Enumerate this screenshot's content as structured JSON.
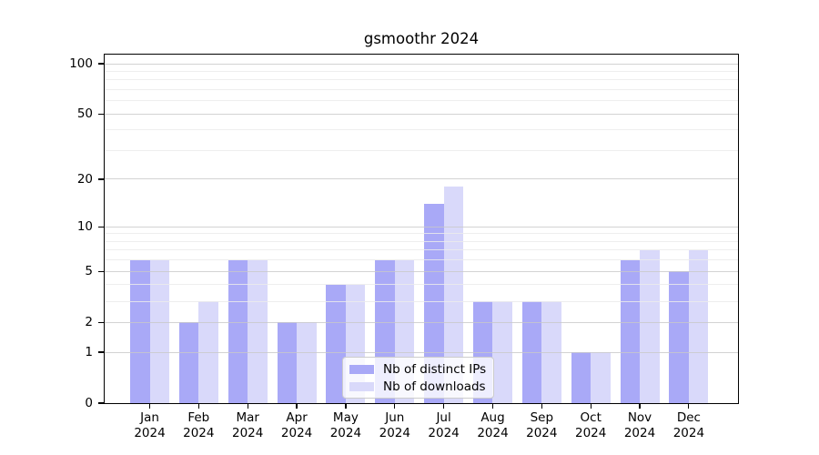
{
  "chart_data": {
    "type": "bar",
    "title": "gsmoothr 2024",
    "categories": [
      "Jan 2024",
      "Feb 2024",
      "Mar 2024",
      "Apr 2024",
      "May 2024",
      "Jun 2024",
      "Jul 2024",
      "Aug 2024",
      "Sep 2024",
      "Oct 2024",
      "Nov 2024",
      "Dec 2024"
    ],
    "series": [
      {
        "name": "Nb of distinct IPs",
        "color": "#a9a9f7",
        "values": [
          6,
          2,
          6,
          2,
          4,
          6,
          14,
          3,
          3,
          1,
          6,
          5
        ]
      },
      {
        "name": "Nb of downloads",
        "color": "#d9d9fa",
        "values": [
          6,
          3,
          6,
          2,
          4,
          6,
          18,
          3,
          3,
          1,
          7,
          7
        ]
      }
    ],
    "xlabel": "",
    "ylabel": "",
    "yscale": "log1p",
    "ylim": [
      0,
      113
    ],
    "y_major_ticks": [
      0,
      1,
      2,
      5,
      10,
      20,
      50,
      100
    ],
    "y_minor_gridlines": [
      3,
      4,
      6,
      7,
      8,
      9,
      30,
      40,
      60,
      70,
      80,
      90
    ],
    "grid": true,
    "grid_over_bars": true,
    "legend_position": "inside-bottom-center"
  },
  "colors": {
    "distinct_ips_bar": "#a9a9f7",
    "downloads_bar": "#d9d9fa",
    "major_gridline": "#c8c8c8",
    "minor_gridline": "#ebebeb",
    "spine": "#000000",
    "legend_border": "#cccccc"
  }
}
